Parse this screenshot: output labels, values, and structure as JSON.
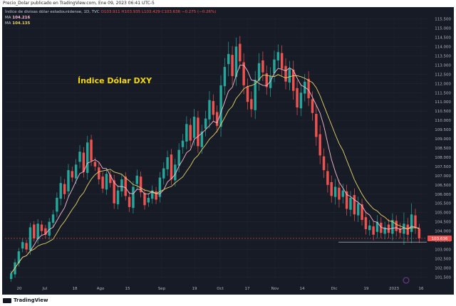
{
  "caption": "Precio_Dolar publicado en TradingView.com, Ene 09, 2023 06:41 UTC-5",
  "legend": {
    "symbol_line": "Índice de divisas dólar estadounidense, 1D, TVC",
    "ohlc": "O103.911  H103.935  L103.429  C103.636  −0.275 (−0.26%)",
    "ma1_label": "MA",
    "ma1_value": "104.216",
    "ma2_label": "MA",
    "ma2_value": "104.135"
  },
  "title": "Índice Dólar DXY",
  "price_badge": "103.636",
  "brand": "TradingView",
  "colors": {
    "up": "#26a69a",
    "down": "#ef5350",
    "ma_fast": "#f8bbd0",
    "ma_slow": "#e6d46a",
    "background": "#171b26",
    "title": "#f5d900"
  },
  "chart_data": {
    "type": "candlestick",
    "y_ticks": [
      "115.500",
      "115.000",
      "114.500",
      "114.000",
      "113.500",
      "113.000",
      "112.500",
      "112.000",
      "111.500",
      "111.000",
      "110.500",
      "110.000",
      "109.500",
      "109.000",
      "108.500",
      "108.000",
      "107.500",
      "107.000",
      "106.500",
      "106.000",
      "105.500",
      "105.000",
      "104.500",
      "104.000",
      "103.500",
      "103.000",
      "102.500",
      "102.000",
      "101.500"
    ],
    "ylim": [
      101.4,
      115.6
    ],
    "x_ticks": [
      "20",
      "Jul",
      "18",
      "Ago",
      "15",
      "Sep",
      "19",
      "Oct",
      "17",
      "Nov",
      "14",
      "Dic",
      "19",
      "2023",
      "16"
    ],
    "close_path": [
      101.7,
      102.3,
      102.9,
      103.4,
      103.0,
      104.2,
      103.6,
      104.4,
      104.0,
      103.8,
      104.5,
      104.9,
      105.8,
      106.6,
      106.0,
      107.3,
      106.9,
      107.6,
      108.3,
      107.2,
      108.8,
      107.8,
      107.5,
      106.8,
      106.3,
      107.1,
      106.6,
      105.5,
      106.2,
      106.8,
      105.9,
      105.3,
      106.4,
      107.0,
      106.1,
      105.4,
      105.8,
      106.2,
      105.7,
      106.9,
      107.4,
      108.0,
      106.8,
      107.6,
      108.4,
      108.9,
      109.8,
      108.9,
      110.2,
      108.6,
      109.4,
      110.1,
      111.1,
      110.3,
      109.7,
      111.9,
      112.9,
      113.6,
      112.4,
      114.0,
      113.2,
      111.9,
      111.0,
      110.6,
      112.2,
      113.1,
      112.6,
      111.8,
      112.4,
      113.3,
      113.7,
      112.8,
      112.1,
      112.8,
      111.6,
      110.7,
      111.5,
      112.1,
      111.2,
      110.4,
      109.1,
      108.1,
      107.3,
      106.5,
      105.9,
      106.4,
      105.7,
      106.2,
      105.2,
      105.8,
      104.9,
      105.5,
      104.6,
      104.1,
      104.3,
      103.8,
      104.5,
      103.9,
      104.2,
      103.9,
      104.6,
      104.0,
      103.9,
      104.4,
      103.8,
      104.9,
      104.2,
      103.6
    ],
    "wick_extent": [
      0.25,
      0.3,
      0.3,
      0.35,
      0.3,
      0.4,
      0.3,
      0.4,
      0.35,
      0.3,
      0.35,
      0.4,
      0.5,
      0.6,
      0.45,
      0.55,
      0.4,
      0.5,
      0.6,
      0.5,
      0.6,
      0.45,
      0.4,
      0.45,
      0.4,
      0.5,
      0.4,
      0.5,
      0.45,
      0.5,
      0.4,
      0.45,
      0.5,
      0.55,
      0.45,
      0.4,
      0.4,
      0.45,
      0.4,
      0.5,
      0.55,
      0.6,
      0.5,
      0.55,
      0.6,
      0.6,
      0.7,
      0.6,
      0.7,
      0.6,
      0.6,
      0.7,
      0.8,
      0.6,
      0.6,
      0.9,
      0.8,
      1.1,
      0.8,
      0.8,
      0.7,
      0.8,
      0.7,
      0.7,
      0.8,
      0.9,
      0.8,
      0.7,
      0.8,
      0.8,
      0.7,
      0.7,
      0.7,
      0.7,
      0.8,
      0.7,
      0.7,
      0.7,
      0.7,
      0.7,
      0.8,
      0.8,
      0.7,
      0.7,
      0.6,
      0.7,
      0.7,
      0.6,
      0.6,
      0.6,
      0.6,
      0.6,
      0.5,
      0.5,
      0.5,
      0.5,
      0.6,
      0.5,
      0.5,
      0.5,
      0.6,
      0.5,
      0.5,
      1.0,
      0.6,
      1.0,
      0.6,
      0.4
    ],
    "support_level": 103.4
  }
}
